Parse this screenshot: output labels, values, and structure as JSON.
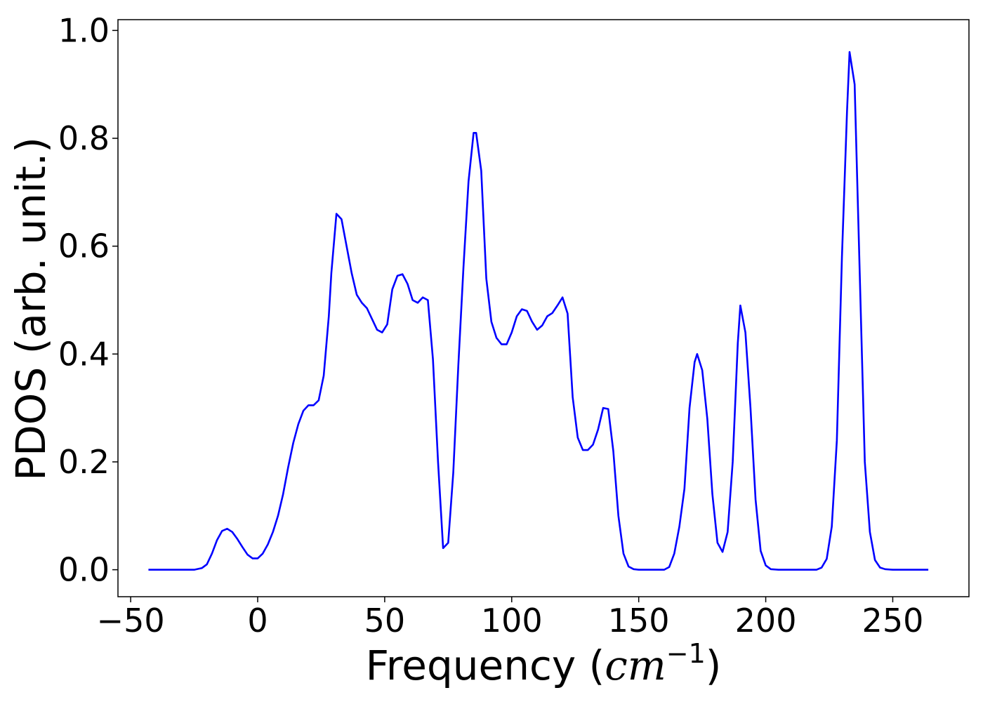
{
  "chart_data": {
    "type": "line",
    "title": "",
    "xlabel": "Frequency (cm⁻¹)",
    "xlabel_parts": {
      "prefix": "Frequency (",
      "math": "cm",
      "superscript": "−1",
      "suffix": ")"
    },
    "ylabel": "PDOS (arb. unit.)",
    "xlim": [
      -55,
      280
    ],
    "ylim": [
      -0.05,
      1.02
    ],
    "xticks": [
      -50,
      0,
      50,
      100,
      150,
      200,
      250
    ],
    "xtick_labels": [
      "−50",
      "0",
      "50",
      "100",
      "150",
      "200",
      "250"
    ],
    "yticks": [
      0.0,
      0.2,
      0.4,
      0.6,
      0.8,
      1.0
    ],
    "ytick_labels": [
      "0.0",
      "0.2",
      "0.4",
      "0.6",
      "0.8",
      "1.0"
    ],
    "grid": false,
    "legend": "none",
    "series": [
      {
        "color": "#0000ff",
        "x": [
          -43,
          -25,
          -22,
          -20,
          -18,
          -16,
          -14,
          -12,
          -10,
          -8,
          -6,
          -4,
          -2,
          0,
          2,
          4,
          6,
          8,
          10,
          12,
          14,
          16,
          18,
          20,
          22,
          24,
          26,
          28,
          29,
          31,
          33,
          35,
          37,
          39,
          41,
          43,
          45,
          47,
          49,
          51,
          53,
          55,
          57,
          59,
          61,
          63,
          65,
          67,
          69,
          71,
          73,
          75,
          77,
          79,
          81,
          83,
          85,
          86,
          88,
          90,
          92,
          94,
          96,
          98,
          100,
          102,
          104,
          106,
          108,
          110,
          112,
          114,
          116,
          118,
          120,
          122,
          124,
          126,
          128,
          130,
          132,
          134,
          136,
          138,
          140,
          142,
          144,
          146,
          148,
          150,
          160,
          162,
          164,
          166,
          168,
          170,
          172,
          173,
          175,
          177,
          179,
          181,
          183,
          185,
          187,
          189,
          190,
          192,
          194,
          196,
          198,
          200,
          202,
          205,
          220,
          222,
          224,
          226,
          228,
          230,
          232,
          233,
          235,
          237,
          239,
          241,
          243,
          245,
          247,
          250,
          264
        ],
        "y": [
          0.0,
          0.0,
          0.003,
          0.01,
          0.03,
          0.055,
          0.072,
          0.076,
          0.07,
          0.057,
          0.042,
          0.028,
          0.021,
          0.021,
          0.03,
          0.047,
          0.07,
          0.1,
          0.14,
          0.19,
          0.235,
          0.27,
          0.295,
          0.305,
          0.305,
          0.314,
          0.36,
          0.47,
          0.55,
          0.66,
          0.65,
          0.6,
          0.55,
          0.51,
          0.495,
          0.485,
          0.465,
          0.445,
          0.44,
          0.455,
          0.52,
          0.545,
          0.548,
          0.53,
          0.5,
          0.495,
          0.505,
          0.5,
          0.39,
          0.2,
          0.04,
          0.05,
          0.18,
          0.38,
          0.56,
          0.72,
          0.81,
          0.81,
          0.74,
          0.54,
          0.46,
          0.43,
          0.418,
          0.418,
          0.44,
          0.47,
          0.483,
          0.48,
          0.46,
          0.445,
          0.453,
          0.47,
          0.476,
          0.49,
          0.505,
          0.475,
          0.32,
          0.245,
          0.222,
          0.222,
          0.232,
          0.26,
          0.3,
          0.298,
          0.22,
          0.1,
          0.03,
          0.006,
          0.001,
          0.0,
          0.0,
          0.005,
          0.03,
          0.08,
          0.15,
          0.3,
          0.385,
          0.4,
          0.37,
          0.28,
          0.14,
          0.05,
          0.033,
          0.07,
          0.2,
          0.42,
          0.49,
          0.44,
          0.3,
          0.13,
          0.035,
          0.008,
          0.001,
          0.0,
          0.0,
          0.004,
          0.02,
          0.08,
          0.24,
          0.58,
          0.85,
          0.96,
          0.9,
          0.55,
          0.2,
          0.07,
          0.018,
          0.004,
          0.001,
          0.0,
          0.0
        ]
      }
    ]
  }
}
